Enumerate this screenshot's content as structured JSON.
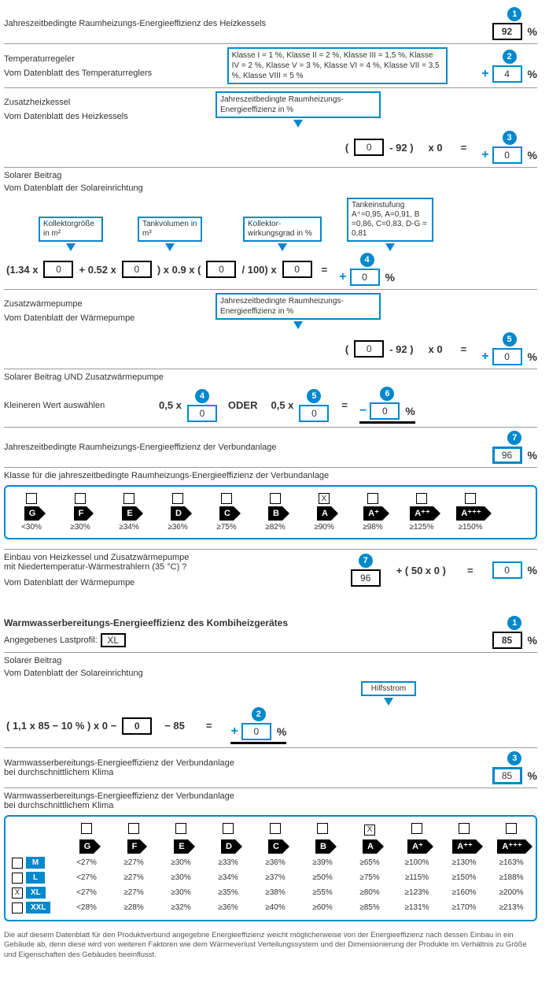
{
  "accent": "#0088cc",
  "s1": {
    "title": "Jahreszeitbedingte Raumheizungs-Energieeffizienz des Heizkessels",
    "badge": "1",
    "value": "92"
  },
  "s2": {
    "title": "Temperaturregeler",
    "sub": "Vom Datenblatt des Temperaturreglers",
    "info": "Klasse I = 1 %, Klasse II = 2 %, Klasse III = 1,5 %, Klasse IV = 2 %, Klasse V = 3 %, Klasse VI = 4 %, Klasse VII = 3,5 %, Klasse VIII = 5 %",
    "badge": "2",
    "value": "4"
  },
  "s3": {
    "title": "Zusatzheizkessel",
    "sub": "Vom Datenblatt des Heizkessels",
    "info": "Jahreszeitbedingte Raumheizungs-Energieeffizienz in %",
    "paren_open": "(",
    "in": "0",
    "minus": "- 92 )",
    "mult": "x   0",
    "eq": "=",
    "badge": "3",
    "out": "0"
  },
  "s4": {
    "title": "Solarer Beitrag",
    "sub": "Vom Datenblatt der Solareinrichtung",
    "h1": "Kollektorgröße in m²",
    "h2": "Tankvolumen in m³",
    "h3": "Kollektor-wirkungsgrad in %",
    "h4": "Tankeinstufung A⁺=0,95, A=0,91, B =0,86, C=0,83, D-G = 0,81",
    "pre1": "(1.34 x",
    "v1": "0",
    "mid1": "+ 0.52 x",
    "v2": "0",
    "mid2": ") x 0.9 x (",
    "v3": "0",
    "mid3": "/ 100)   x",
    "v4": "0",
    "eq": "=",
    "badge": "4",
    "out": "0"
  },
  "s5": {
    "title": "Zusatzwärmepumpe",
    "sub": "Vom Datenblatt der Wärmepumpe",
    "info": "Jahreszeitbedingte Raumheizungs-Energieeffizienz in %",
    "paren_open": "(",
    "in": "0",
    "minus": "- 92 )",
    "mult": "x   0",
    "eq": "=",
    "badge": "5",
    "out": "0"
  },
  "s6": {
    "title": "Solarer Beitrag UND Zusatzwärmepumpe",
    "sub": "Kleineren Wert auswählen",
    "lbl1": "0,5 x",
    "b1": "4",
    "v1": "0",
    "or": "ODER",
    "lbl2": "0,5 x",
    "b2": "5",
    "v2": "0",
    "eq": "=",
    "badge": "6",
    "out": "0"
  },
  "s7": {
    "title": "Jahreszeitbedingte Raumheizungs-Energieeffizienz der Verbundanlage",
    "badge": "7",
    "value": "96"
  },
  "s8": {
    "title": "Klasse für die jahreszeitbedingte Raumheizungs-Energieeffizienz der Verbundanlage",
    "classes": [
      "G",
      "F",
      "E",
      "D",
      "C",
      "B",
      "A",
      "A⁺",
      "A⁺⁺",
      "A⁺⁺⁺"
    ],
    "thresholds": [
      "<30%",
      "≥30%",
      "≥34%",
      "≥36%",
      "≥75%",
      "≥82%",
      "≥90%",
      "≥98%",
      "≥125%",
      "≥150%"
    ],
    "checked_index": 6
  },
  "s9": {
    "l1": "Einbau von Heizkessel und Zusatzwärmepumpe",
    "l2": "mit Niedertemperatur-Wärmestrahlern (35 °C) ?",
    "sub": "Vom Datenblatt der Wärmepumpe",
    "badge": "7",
    "in": "96",
    "formula": "+ ( 50 x 0 )",
    "eq": "=",
    "out": "0"
  },
  "s10": {
    "title": "Warmwasserbereitungs-Energieeffizienz des Kombiheizgerätes",
    "profile_label": "Angegebenes Lastprofil:",
    "profile": "XL",
    "badge": "1",
    "value": "85"
  },
  "s11": {
    "title": "Solarer Beitrag",
    "sub": "Vom Datenblatt der Solareinrichtung",
    "hint": "Hilfsstrom",
    "pre": "( 1,1   x   85   −   10 % )   x   0   −",
    "v": "0",
    "post": "−   85",
    "eq": "=",
    "badge": "2",
    "out": "0"
  },
  "s12": {
    "l1": "Warmwasserbereitungs-Energieeffizienz der Verbundanlage",
    "l2": "bei durchschnittlichem Klima",
    "badge": "3",
    "value": "85"
  },
  "s13": {
    "l1": "Warmwasserbereitungs-Energieeffizienz der Verbundanlage",
    "l2": "bei durchschnittlichem Klima",
    "classes": [
      "G",
      "F",
      "E",
      "D",
      "C",
      "B",
      "A",
      "A⁺",
      "A⁺⁺",
      "A⁺⁺⁺"
    ],
    "checked_col": 6,
    "rows": [
      {
        "size": "M",
        "checked": false,
        "vals": [
          "<27%",
          "≥27%",
          "≥30%",
          "≥33%",
          "≥36%",
          "≥39%",
          "≥65%",
          "≥100%",
          "≥130%",
          "≥163%"
        ]
      },
      {
        "size": "L",
        "checked": false,
        "vals": [
          "<27%",
          "≥27%",
          "≥30%",
          "≥34%",
          "≥37%",
          "≥50%",
          "≥75%",
          "≥115%",
          "≥150%",
          "≥188%"
        ]
      },
      {
        "size": "XL",
        "checked": true,
        "vals": [
          "<27%",
          "≥27%",
          "≥30%",
          "≥35%",
          "≥38%",
          "≥55%",
          "≥80%",
          "≥123%",
          "≥160%",
          "≥200%"
        ]
      },
      {
        "size": "XXL",
        "checked": false,
        "vals": [
          "<28%",
          "≥28%",
          "≥32%",
          "≥36%",
          "≥40%",
          "≥60%",
          "≥85%",
          "≥131%",
          "≥170%",
          "≥213%"
        ]
      }
    ]
  },
  "footnote": "Die auf diesem Datenblatt für den Produktverbund angegebne Energieeffizienz weicht möglicherweise von der Energieeffizienz nach dessen Einbau in ein Gebäude ab, denn diese wird von weiteren Faktoren wie dem Wärmeverlust Verteilungssystem und der Dimensionierung der Produkte im Verhältnis zu Größe und Eigenschaften des Gebäudes beeinflusst."
}
